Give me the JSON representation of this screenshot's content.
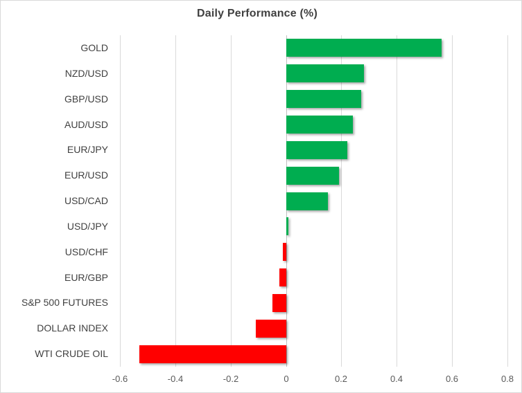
{
  "window": {
    "background_color": "#ffffff",
    "border_color": "#d9d9d9"
  },
  "chart_data": {
    "type": "bar",
    "orientation": "horizontal",
    "title": "Daily Performance (%)",
    "categories": [
      "GOLD",
      "NZD/USD",
      "GBP/USD",
      "AUD/USD",
      "EUR/JPY",
      "EUR/USD",
      "USD/CAD",
      "USD/JPY",
      "USD/CHF",
      "EUR/GBP",
      "S&P 500 FUTURES",
      "DOLLAR INDEX",
      "WTI CRUDE OIL"
    ],
    "values": [
      0.56,
      0.28,
      0.27,
      0.24,
      0.22,
      0.19,
      0.15,
      0.008,
      -0.013,
      -0.025,
      -0.05,
      -0.11,
      -0.53
    ],
    "xlim": [
      -0.6,
      0.8
    ],
    "x_ticks": [
      -0.6,
      -0.4,
      -0.2,
      0,
      0.2,
      0.4,
      0.6,
      0.8
    ],
    "x_tick_labels": [
      "-0.6",
      "-0.4",
      "-0.2",
      "0",
      "0.2",
      "0.4",
      "0.6",
      "0.8"
    ],
    "grid": true,
    "legend": "none",
    "xlabel": "",
    "ylabel": "",
    "positive_color": "#00ad50",
    "negative_color": "#ff0000",
    "gridline_color": "#d9d9d9",
    "zero_axis_color": "#bfbfbf",
    "title_color": "#404040",
    "category_label_color": "#404040",
    "tick_label_color": "#595959"
  }
}
